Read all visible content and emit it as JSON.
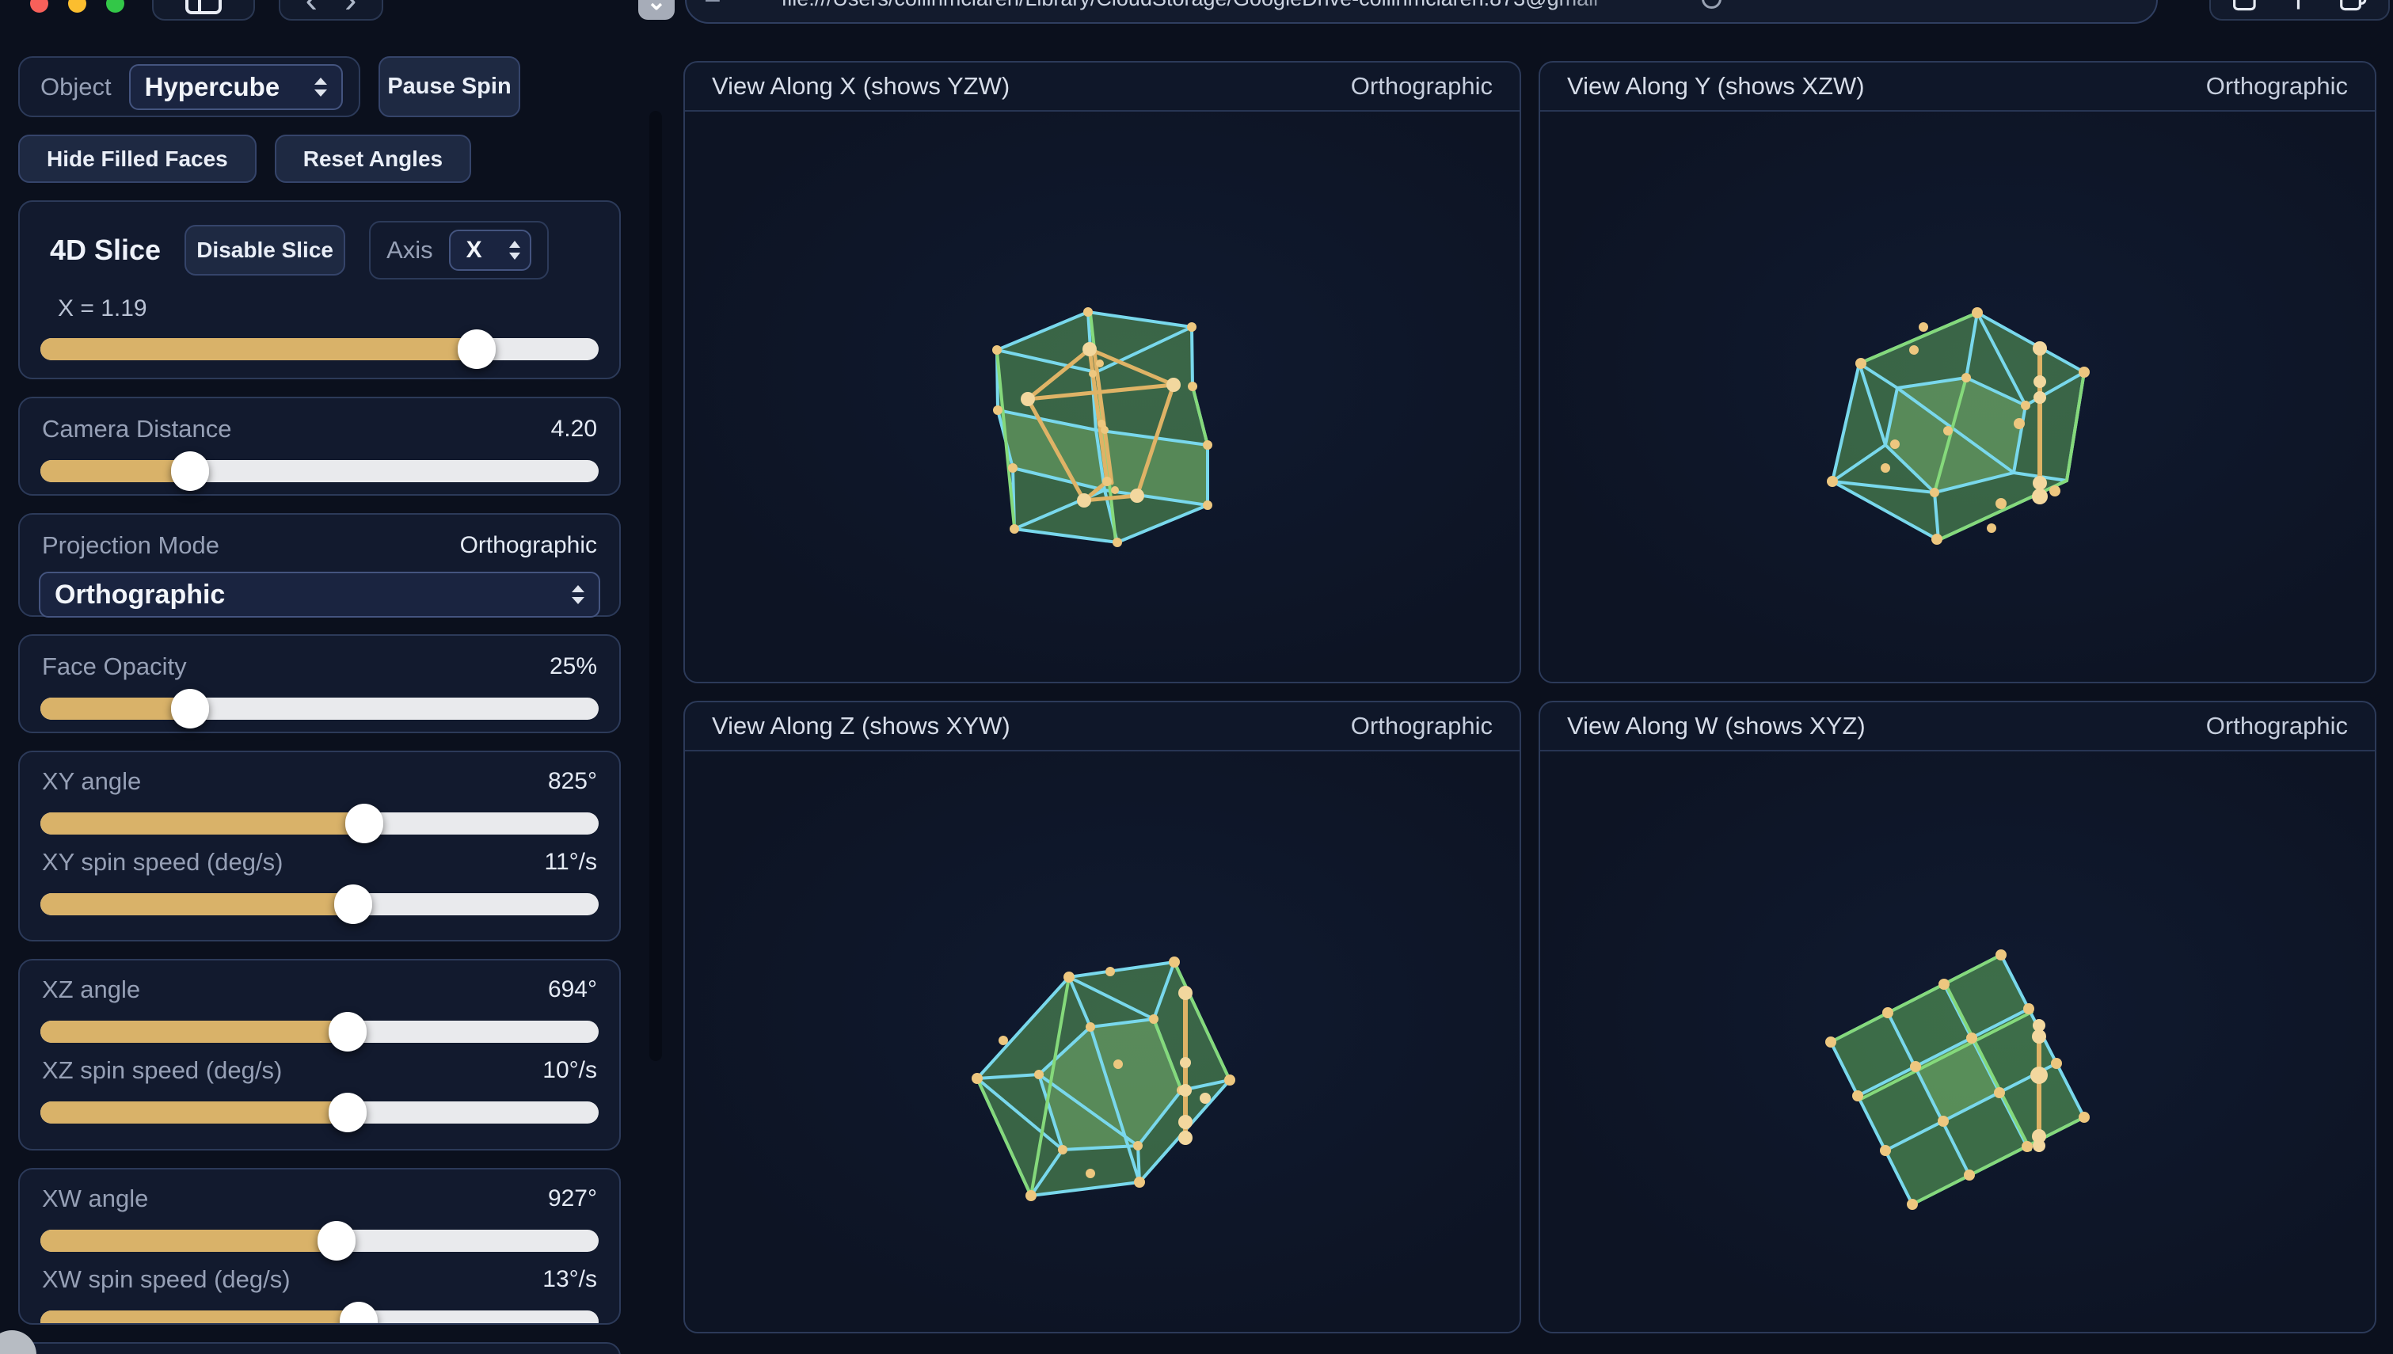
{
  "browser": {
    "url": "file:///Users/collinmclaren/Library/CloudStorage/GoogleDrive-collinmclaren.873@gmail"
  },
  "sidebar": {
    "object": {
      "label": "Object",
      "value": "Hypercube"
    },
    "buttons": {
      "pause": "Pause Spin",
      "hide_faces": "Hide Filled Faces",
      "reset": "Reset Angles"
    },
    "slice": {
      "title": "4D Slice",
      "disable": "Disable Slice",
      "axis_label": "Axis",
      "axis_value": "X",
      "readout": "X = 1.19",
      "pct": 78
    },
    "camera": {
      "label": "Camera Distance",
      "value": "4.20",
      "pct": 27
    },
    "projection": {
      "label": "Projection Mode",
      "value": "Orthographic",
      "selected": "Orthographic"
    },
    "opacity": {
      "label": "Face Opacity",
      "value": "25%",
      "pct": 27
    },
    "angles": [
      {
        "label": "XY angle",
        "value": "825°",
        "pct": 58,
        "speed_label": "XY spin speed (deg/s)",
        "speed_value": "11°/s",
        "speed_pct": 56
      },
      {
        "label": "XZ angle",
        "value": "694°",
        "pct": 55,
        "speed_label": "XZ spin speed (deg/s)",
        "speed_value": "10°/s",
        "speed_pct": 55
      },
      {
        "label": "XW angle",
        "value": "927°",
        "pct": 53,
        "speed_label": "XW spin speed (deg/s)",
        "speed_value": "13°/s",
        "speed_pct": 57
      }
    ]
  },
  "viewports": [
    {
      "title": "View Along X (shows YZW)",
      "mode": "Orthographic"
    },
    {
      "title": "View Along Y (shows XZW)",
      "mode": "Orthographic"
    },
    {
      "title": "View Along Z (shows XYW)",
      "mode": "Orthographic"
    },
    {
      "title": "View Along W (shows XYZ)",
      "mode": "Orthographic"
    }
  ],
  "colors": {
    "accent_gold": "#d9b269",
    "edge_cyan": "#79d8ec",
    "edge_green": "#85d97b",
    "face_green": "#63b25f",
    "vertex_gold": "#edc77f"
  }
}
